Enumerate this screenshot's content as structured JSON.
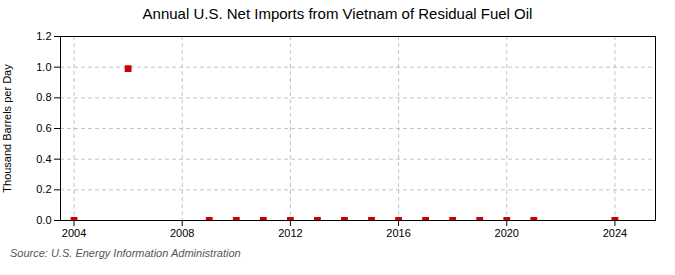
{
  "chart_data": {
    "type": "scatter",
    "title": "Annual U.S. Net Imports from Vietnam of Residual Fuel Oil",
    "ylabel": "Thousand Barrels per Day",
    "annotations": [
      "Source: U.S. Energy Information Administration"
    ],
    "x": [
      2004,
      2006,
      2009,
      2010,
      2011,
      2012,
      2013,
      2014,
      2015,
      2016,
      2017,
      2018,
      2019,
      2020,
      2021,
      2024
    ],
    "values": [
      0.0,
      0.99,
      0.0,
      0.0,
      0.0,
      0.0,
      0.0,
      0.0,
      0.0,
      0.0,
      0.0,
      0.0,
      0.0,
      0.0,
      0.0,
      0.0
    ],
    "color": "#cc0000",
    "marker": "square",
    "xlim": [
      2003.5,
      2025.5
    ],
    "xticks": [
      2004,
      2008,
      2012,
      2016,
      2020,
      2024
    ],
    "ylim": [
      0.0,
      1.2
    ],
    "yticks": [
      {
        "value": 0.0,
        "label": "0.0"
      },
      0.2,
      0.4,
      0.6,
      0.8,
      {
        "value": 1.0,
        "label": "1.0"
      },
      1.2
    ],
    "grid": true
  }
}
